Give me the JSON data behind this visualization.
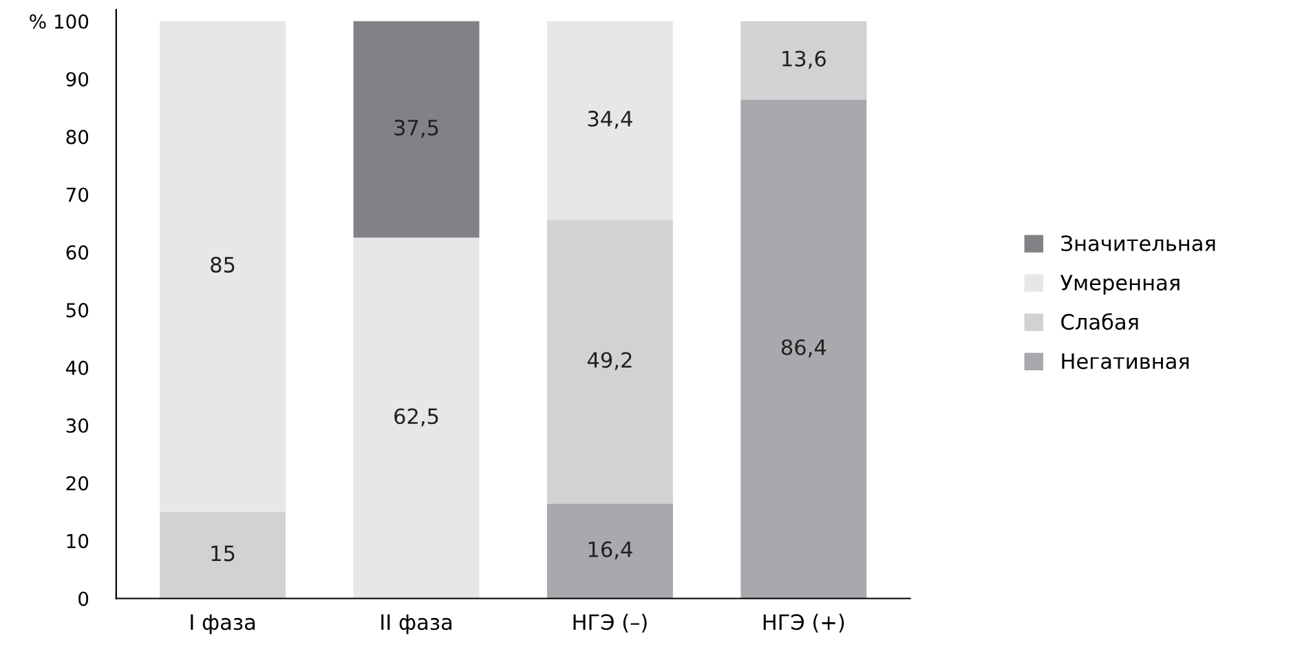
{
  "chart_data": {
    "type": "bar",
    "stacked": true,
    "categories": [
      "I фаза",
      "II фаза",
      "НГЭ (–)",
      "НГЭ (+)"
    ],
    "series": [
      {
        "name": "Негативная",
        "color": "#a7a9ac",
        "values": [
          null,
          null,
          16.4,
          86.4
        ],
        "value_labels": [
          null,
          null,
          "16,4",
          "86,4"
        ]
      },
      {
        "name": "Слабая",
        "color": "#d1d2d4",
        "values": [
          15,
          null,
          49.2,
          13.6
        ],
        "value_labels": [
          "15",
          null,
          "49,2",
          "13,6"
        ]
      },
      {
        "name": "Умеренная",
        "color": "#e6e7e8",
        "values": [
          85,
          62.5,
          34.4,
          null
        ],
        "value_labels": [
          "85",
          "62,5",
          "34,4",
          null
        ]
      },
      {
        "name": "Значительная",
        "color": "#808285",
        "values": [
          null,
          37.5,
          null,
          null
        ],
        "value_labels": [
          null,
          "37,5",
          null,
          null
        ]
      }
    ],
    "ylim": [
      0,
      102
    ],
    "yticks": [
      0,
      10,
      20,
      30,
      40,
      50,
      60,
      70,
      80,
      90,
      {
        "value": 100,
        "label": "% 100"
      }
    ],
    "legend": "right",
    "grid": false
  }
}
